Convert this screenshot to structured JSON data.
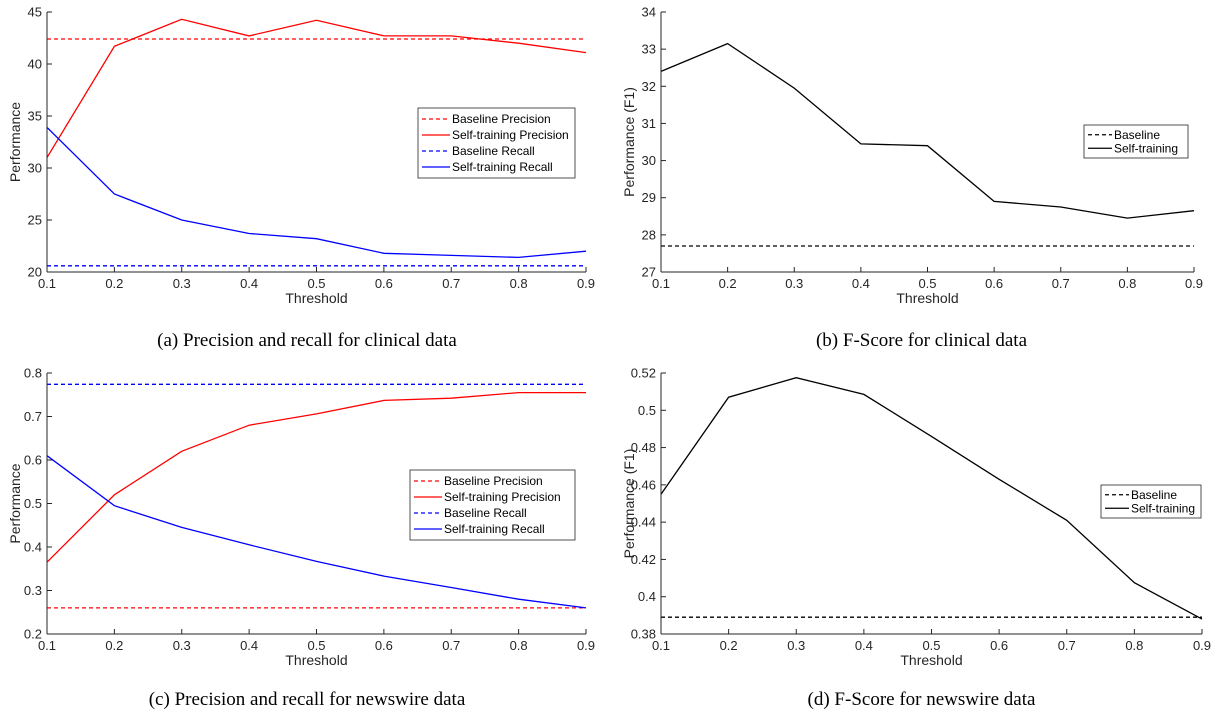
{
  "chart_data": [
    {
      "type": "line",
      "caption": "(a) Precision and recall for clinical data",
      "xlabel": "Threshold",
      "ylabel": "Performance",
      "xlim": [
        0.1,
        0.9
      ],
      "ylim": [
        20,
        45
      ],
      "xticks": [
        0.1,
        0.2,
        0.3,
        0.4,
        0.5,
        0.6,
        0.7,
        0.8,
        0.9
      ],
      "yticks": [
        20,
        25,
        30,
        35,
        40,
        45
      ],
      "legend_position": "right",
      "x": [
        0.1,
        0.2,
        0.3,
        0.4,
        0.5,
        0.6,
        0.7,
        0.8,
        0.9
      ],
      "series": [
        {
          "name": "Baseline Precision",
          "color": "#ff0000",
          "dash": true,
          "values": [
            42.4,
            42.4,
            42.4,
            42.4,
            42.4,
            42.4,
            42.4,
            42.4,
            42.4
          ]
        },
        {
          "name": "Self-training Precision",
          "color": "#ff0000",
          "dash": false,
          "values": [
            31.0,
            41.7,
            44.3,
            42.7,
            44.2,
            42.7,
            42.7,
            42.0,
            41.1
          ]
        },
        {
          "name": "Baseline Recall",
          "color": "#0000ff",
          "dash": true,
          "values": [
            20.6,
            20.6,
            20.6,
            20.6,
            20.6,
            20.6,
            20.6,
            20.6,
            20.6
          ]
        },
        {
          "name": "Self-training Recall",
          "color": "#0000ff",
          "dash": false,
          "values": [
            33.9,
            27.5,
            25.0,
            23.7,
            23.2,
            21.8,
            21.6,
            21.4,
            22.0
          ]
        }
      ]
    },
    {
      "type": "line",
      "caption": "(b) F-Score for clinical data",
      "xlabel": "Threshold",
      "ylabel": "Performance (F1)",
      "xlim": [
        0.1,
        0.9
      ],
      "ylim": [
        27,
        34
      ],
      "xticks": [
        0.1,
        0.2,
        0.3,
        0.4,
        0.5,
        0.6,
        0.7,
        0.8,
        0.9
      ],
      "yticks": [
        27,
        28,
        29,
        30,
        31,
        32,
        33,
        34
      ],
      "legend_position": "right",
      "x": [
        0.1,
        0.2,
        0.3,
        0.4,
        0.5,
        0.6,
        0.7,
        0.8,
        0.9
      ],
      "series": [
        {
          "name": "Baseline",
          "color": "#000000",
          "dash": true,
          "values": [
            27.7,
            27.7,
            27.7,
            27.7,
            27.7,
            27.7,
            27.7,
            27.7,
            27.7
          ]
        },
        {
          "name": "Self-training",
          "color": "#000000",
          "dash": false,
          "values": [
            32.4,
            33.15,
            31.95,
            30.45,
            30.4,
            28.9,
            28.75,
            28.45,
            28.65
          ]
        }
      ]
    },
    {
      "type": "line",
      "caption": "(c) Precision and recall for newswire data",
      "xlabel": "Threshold",
      "ylabel": "Performance",
      "xlim": [
        0.1,
        0.9
      ],
      "ylim": [
        0.2,
        0.8
      ],
      "xticks": [
        0.1,
        0.2,
        0.3,
        0.4,
        0.5,
        0.6,
        0.7,
        0.8,
        0.9
      ],
      "yticks": [
        0.2,
        0.3,
        0.4,
        0.5,
        0.6,
        0.7,
        0.8
      ],
      "legend_position": "right",
      "x": [
        0.1,
        0.2,
        0.3,
        0.4,
        0.5,
        0.6,
        0.7,
        0.8,
        0.9
      ],
      "series": [
        {
          "name": "Baseline Precision",
          "color": "#ff0000",
          "dash": true,
          "values": [
            0.26,
            0.26,
            0.26,
            0.26,
            0.26,
            0.26,
            0.26,
            0.26,
            0.26
          ]
        },
        {
          "name": "Self-training Precision",
          "color": "#ff0000",
          "dash": false,
          "values": [
            0.365,
            0.52,
            0.62,
            0.68,
            0.706,
            0.737,
            0.742,
            0.755,
            0.755
          ]
        },
        {
          "name": "Baseline Recall",
          "color": "#0000ff",
          "dash": true,
          "values": [
            0.774,
            0.774,
            0.774,
            0.774,
            0.774,
            0.774,
            0.774,
            0.774,
            0.774
          ]
        },
        {
          "name": "Self-training Recall",
          "color": "#0000ff",
          "dash": false,
          "values": [
            0.61,
            0.495,
            0.445,
            0.405,
            0.367,
            0.333,
            0.307,
            0.28,
            0.26
          ]
        }
      ]
    },
    {
      "type": "line",
      "caption": "(d) F-Score for newswire data",
      "xlabel": "Threshold",
      "ylabel": "Performance (F1)",
      "xlim": [
        0.1,
        0.9
      ],
      "ylim": [
        0.38,
        0.52
      ],
      "xticks": [
        0.1,
        0.2,
        0.3,
        0.4,
        0.5,
        0.6,
        0.7,
        0.8,
        0.9
      ],
      "yticks": [
        0.38,
        0.4,
        0.42,
        0.44,
        0.46,
        0.48,
        0.5,
        0.52
      ],
      "legend_position": "right",
      "x": [
        0.1,
        0.2,
        0.3,
        0.4,
        0.5,
        0.6,
        0.7,
        0.8,
        0.9
      ],
      "series": [
        {
          "name": "Baseline",
          "color": "#000000",
          "dash": true,
          "values": [
            0.389,
            0.389,
            0.389,
            0.389,
            0.389,
            0.389,
            0.389,
            0.389,
            0.389
          ]
        },
        {
          "name": "Self-training",
          "color": "#000000",
          "dash": false,
          "values": [
            0.455,
            0.507,
            0.5175,
            0.5085,
            0.486,
            0.463,
            0.441,
            0.4075,
            0.388
          ]
        }
      ]
    }
  ]
}
